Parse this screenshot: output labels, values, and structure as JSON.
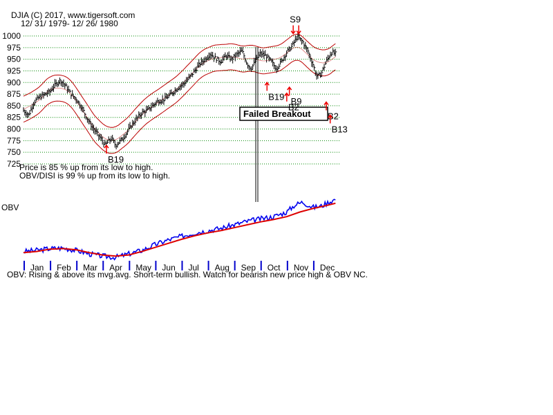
{
  "header": {
    "title": "DJIA   (C) 2017, www.tigersoft.com",
    "date_range": "12/ 31/ 1979- 12/ 26/ 1980"
  },
  "notes": {
    "price_pct": "Price is  85 % up from its low to high.",
    "obv_pct": "OBV/DISI is  99 % up from its low to high.",
    "obv_label": "OBV",
    "commentary": "OBV: Rising & above its mvg.avg. Short-term bullish. Watch for bearish new price high & OBV NC."
  },
  "annotation_box": {
    "text": "Failed Breakout"
  },
  "colors": {
    "band": "#bb0000",
    "signal": "#ee0000",
    "obv": "#0000ee",
    "obv_ma": "#dd0000",
    "grid": "#008800",
    "bars": "#000000"
  },
  "chart_data": [
    {
      "type": "ohlc",
      "title": "DJIA",
      "ylabel": "",
      "ylim": [
        725,
        1010
      ],
      "yticks": [
        725,
        750,
        775,
        800,
        825,
        850,
        875,
        900,
        925,
        950,
        975,
        1000
      ],
      "months": [
        "Jan",
        "Feb",
        "Mar",
        "Apr",
        "May",
        "Jun",
        "Jul",
        "Aug",
        "Sep",
        "Oct",
        "Nov",
        "Dec"
      ],
      "close_path": [
        [
          0,
          840
        ],
        [
          0.2,
          830
        ],
        [
          0.4,
          858
        ],
        [
          0.6,
          868
        ],
        [
          0.8,
          874
        ],
        [
          1.0,
          880
        ],
        [
          1.2,
          895
        ],
        [
          1.4,
          905
        ],
        [
          1.6,
          893
        ],
        [
          1.8,
          875
        ],
        [
          2.0,
          865
        ],
        [
          2.2,
          848
        ],
        [
          2.4,
          825
        ],
        [
          2.6,
          805
        ],
        [
          2.8,
          790
        ],
        [
          3.0,
          775
        ],
        [
          3.1,
          765
        ],
        [
          3.2,
          772
        ],
        [
          3.35,
          780
        ],
        [
          3.5,
          765
        ],
        [
          3.7,
          775
        ],
        [
          3.9,
          790
        ],
        [
          4.1,
          808
        ],
        [
          4.3,
          822
        ],
        [
          4.5,
          835
        ],
        [
          4.7,
          840
        ],
        [
          4.9,
          850
        ],
        [
          5.1,
          860
        ],
        [
          5.3,
          862
        ],
        [
          5.5,
          870
        ],
        [
          5.7,
          880
        ],
        [
          5.9,
          890
        ],
        [
          6.1,
          898
        ],
        [
          6.3,
          910
        ],
        [
          6.5,
          925
        ],
        [
          6.7,
          940
        ],
        [
          6.9,
          950
        ],
        [
          7.1,
          962
        ],
        [
          7.3,
          952
        ],
        [
          7.5,
          945
        ],
        [
          7.7,
          958
        ],
        [
          7.9,
          950
        ],
        [
          8.1,
          960
        ],
        [
          8.3,
          968
        ],
        [
          8.5,
          940
        ],
        [
          8.65,
          930
        ],
        [
          8.8,
          945
        ],
        [
          9.0,
          962
        ],
        [
          9.2,
          958
        ],
        [
          9.4,
          946
        ],
        [
          9.6,
          930
        ],
        [
          9.8,
          945
        ],
        [
          10.0,
          965
        ],
        [
          10.2,
          978
        ],
        [
          10.4,
          998
        ],
        [
          10.6,
          988
        ],
        [
          10.8,
          968
        ],
        [
          11.0,
          938
        ],
        [
          11.15,
          912
        ],
        [
          11.3,
          918
        ],
        [
          11.5,
          945
        ],
        [
          11.7,
          965
        ],
        [
          11.85,
          962
        ]
      ],
      "band_offset": 28,
      "signals": [
        {
          "label": "S9",
          "type": "sell",
          "t": 10.35,
          "price": 1005
        },
        {
          "label": "B19",
          "type": "buy",
          "t": 3.15,
          "price": 765
        },
        {
          "label": "B19",
          "type": "buy",
          "t": 9.25,
          "price": 900
        },
        {
          "label": "B9",
          "type": "buy",
          "t": 10.1,
          "price": 890
        },
        {
          "label": "B2",
          "type": "buy",
          "t": 10.0,
          "price": 877
        },
        {
          "label": "B2",
          "type": "buy",
          "t": 11.5,
          "price": 858
        },
        {
          "label": "B13",
          "type": "buy",
          "t": 11.65,
          "price": 830
        }
      ]
    },
    {
      "type": "line",
      "title": "OBV",
      "series": [
        {
          "name": "OBV",
          "points": [
            [
              0,
              0.1
            ],
            [
              0.5,
              0.12
            ],
            [
              1.0,
              0.15
            ],
            [
              1.5,
              0.16
            ],
            [
              2.0,
              0.12
            ],
            [
              2.5,
              0.06
            ],
            [
              3.0,
              0.02
            ],
            [
              3.5,
              0.0
            ],
            [
              4.0,
              0.06
            ],
            [
              4.5,
              0.12
            ],
            [
              5.0,
              0.22
            ],
            [
              5.5,
              0.3
            ],
            [
              6.0,
              0.36
            ],
            [
              6.5,
              0.42
            ],
            [
              7.0,
              0.46
            ],
            [
              7.5,
              0.5
            ],
            [
              8.0,
              0.56
            ],
            [
              8.5,
              0.62
            ],
            [
              9.0,
              0.66
            ],
            [
              9.5,
              0.7
            ],
            [
              10.0,
              0.78
            ],
            [
              10.3,
              0.9
            ],
            [
              10.6,
              0.95
            ],
            [
              11.0,
              0.86
            ],
            [
              11.3,
              0.88
            ],
            [
              11.6,
              0.95
            ],
            [
              11.85,
              1.0
            ]
          ]
        },
        {
          "name": "OBV moving average",
          "points": [
            [
              0,
              0.08
            ],
            [
              0.5,
              0.1
            ],
            [
              1.0,
              0.14
            ],
            [
              1.5,
              0.15
            ],
            [
              2.0,
              0.13
            ],
            [
              2.5,
              0.08
            ],
            [
              3.0,
              0.04
            ],
            [
              3.5,
              0.02
            ],
            [
              4.0,
              0.04
            ],
            [
              4.5,
              0.1
            ],
            [
              5.0,
              0.17
            ],
            [
              5.5,
              0.24
            ],
            [
              6.0,
              0.31
            ],
            [
              6.5,
              0.37
            ],
            [
              7.0,
              0.42
            ],
            [
              7.5,
              0.46
            ],
            [
              8.0,
              0.51
            ],
            [
              8.5,
              0.56
            ],
            [
              9.0,
              0.61
            ],
            [
              9.5,
              0.65
            ],
            [
              10.0,
              0.7
            ],
            [
              10.5,
              0.78
            ],
            [
              11.0,
              0.84
            ],
            [
              11.5,
              0.89
            ],
            [
              11.85,
              0.93
            ]
          ]
        }
      ]
    }
  ]
}
